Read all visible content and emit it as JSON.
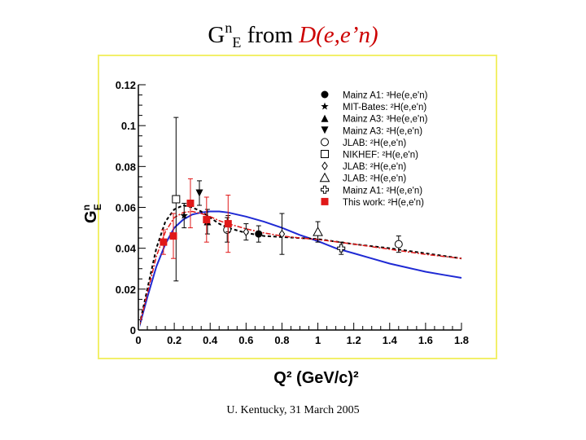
{
  "title": {
    "symbol": "G",
    "sup": "n",
    "sub": "E",
    "middle": " from ",
    "reaction": "D(e,e’n)"
  },
  "footer": "U. Kentucky, 31 March 2005",
  "colors": {
    "frame": "#f2f06a",
    "blue": "#1f2ad4",
    "red": "#e01818",
    "black": "#000000"
  },
  "chart_data": {
    "type": "scatter",
    "title": "",
    "xlabel": "Q² (GeV/c)²",
    "ylabel": "G_E^n",
    "xlim": [
      0,
      1.8
    ],
    "ylim": [
      0,
      0.12
    ],
    "xticks": [
      "0",
      "0.2",
      "0.4",
      "0.6",
      "0.8",
      "1",
      "1.2",
      "1.4",
      "1.6",
      "1.8"
    ],
    "yticks": [
      "0",
      "0.02",
      "0.04",
      "0.06",
      "0.08",
      "0.1",
      "0.12"
    ],
    "legend_position": "top-right",
    "legend": [
      {
        "marker": "filled-circle",
        "label": "Mainz A1: ³He(e,e'n)"
      },
      {
        "marker": "filled-star",
        "label": "MIT-Bates: ²H(e,e'n)"
      },
      {
        "marker": "filled-triangle-up",
        "label": "Mainz A3: ³He(e,e'n)"
      },
      {
        "marker": "filled-triangle-down",
        "label": "Mainz A3: ²H(e,e'n)"
      },
      {
        "marker": "open-circle",
        "label": "JLAB: ²H(e,e'n)"
      },
      {
        "marker": "open-square",
        "label": "NIKHEF: ²H(e,e'n)"
      },
      {
        "marker": "open-diamond",
        "label": "JLAB: ²H(e,e'n)"
      },
      {
        "marker": "open-triangle-up",
        "label": "JLAB: ²H(e,e'n)"
      },
      {
        "marker": "open-cross",
        "label": "Mainz A1: ²H(e,e'n)"
      },
      {
        "marker": "red-square",
        "label": "This work: ²H(e,e'n)"
      }
    ],
    "series": [
      {
        "name": "Mainz A1 ³He",
        "marker": "filled-circle",
        "points": [
          {
            "x": 0.67,
            "y": 0.047,
            "err": 0.004
          }
        ]
      },
      {
        "name": "MIT-Bates",
        "marker": "filled-star",
        "points": [
          {
            "x": 0.255,
            "y": 0.056,
            "err": 0.006
          }
        ]
      },
      {
        "name": "Mainz A3 ³He",
        "marker": "filled-triangle-up",
        "points": [
          {
            "x": 0.385,
            "y": 0.053,
            "err": 0.006
          }
        ]
      },
      {
        "name": "Mainz A3 ²H",
        "marker": "filled-triangle-down",
        "points": [
          {
            "x": 0.34,
            "y": 0.067,
            "err": 0.006
          }
        ]
      },
      {
        "name": "JLAB open circle",
        "marker": "open-circle",
        "points": [
          {
            "x": 0.495,
            "y": 0.049,
            "err": 0.006
          },
          {
            "x": 1.45,
            "y": 0.042,
            "err": 0.004
          }
        ]
      },
      {
        "name": "NIKHEF",
        "marker": "open-square",
        "points": [
          {
            "x": 0.21,
            "y": 0.064,
            "err": 0.04
          }
        ]
      },
      {
        "name": "JLAB diamond",
        "marker": "open-diamond",
        "points": [
          {
            "x": 0.5,
            "y": 0.052,
            "err": 0.004
          },
          {
            "x": 0.6,
            "y": 0.048,
            "err": 0.004
          },
          {
            "x": 0.8,
            "y": 0.047,
            "err": 0.01
          }
        ]
      },
      {
        "name": "JLAB open triangle",
        "marker": "open-triangle-up",
        "points": [
          {
            "x": 1.0,
            "y": 0.048,
            "err": 0.005
          }
        ]
      },
      {
        "name": "Mainz A1 ²H",
        "marker": "open-cross",
        "points": [
          {
            "x": 1.13,
            "y": 0.04,
            "err": 0.003
          }
        ]
      },
      {
        "name": "This work",
        "marker": "red-square",
        "points": [
          {
            "x": 0.14,
            "y": 0.043,
            "err": 0.006
          },
          {
            "x": 0.195,
            "y": 0.046,
            "err": 0.011
          },
          {
            "x": 0.29,
            "y": 0.062,
            "err": 0.012
          },
          {
            "x": 0.38,
            "y": 0.054,
            "err": 0.011
          },
          {
            "x": 0.5,
            "y": 0.052,
            "err": 0.014
          }
        ]
      }
    ],
    "curves": [
      {
        "name": "fit blue solid",
        "style": "solid-blue",
        "x": [
          0,
          0.05,
          0.1,
          0.15,
          0.2,
          0.25,
          0.3,
          0.35,
          0.4,
          0.45,
          0.5,
          0.6,
          0.7,
          0.8,
          0.9,
          1.0,
          1.1,
          1.2,
          1.3,
          1.4,
          1.5,
          1.6,
          1.7,
          1.8
        ],
        "y": [
          0,
          0.016,
          0.031,
          0.042,
          0.05,
          0.054,
          0.0565,
          0.0575,
          0.058,
          0.058,
          0.0575,
          0.0555,
          0.053,
          0.05,
          0.0465,
          0.0435,
          0.04,
          0.0375,
          0.035,
          0.0325,
          0.0305,
          0.0285,
          0.027,
          0.0255
        ]
      },
      {
        "name": "fit black dashed",
        "style": "dashed-black",
        "x": [
          0,
          0.05,
          0.1,
          0.15,
          0.2,
          0.25,
          0.3,
          0.35,
          0.4,
          0.45,
          0.5,
          0.6,
          0.7,
          0.8,
          0.9,
          1.0,
          1.2,
          1.4,
          1.6,
          1.8
        ],
        "y": [
          0,
          0.02,
          0.04,
          0.053,
          0.059,
          0.061,
          0.06,
          0.058,
          0.055,
          0.052,
          0.05,
          0.0475,
          0.046,
          0.0455,
          0.045,
          0.0445,
          0.042,
          0.04,
          0.0375,
          0.035
        ]
      },
      {
        "name": "fit red dash-dot",
        "style": "dashdot-red",
        "x": [
          0,
          0.05,
          0.1,
          0.15,
          0.2,
          0.25,
          0.3,
          0.35,
          0.4,
          0.45,
          0.5,
          0.6,
          0.7,
          0.8,
          0.9,
          1.0,
          1.2,
          1.4,
          1.6,
          1.8
        ],
        "y": [
          0,
          0.018,
          0.036,
          0.048,
          0.055,
          0.0575,
          0.058,
          0.057,
          0.0555,
          0.0535,
          0.052,
          0.0495,
          0.0475,
          0.046,
          0.045,
          0.0443,
          0.042,
          0.0395,
          0.037,
          0.035
        ]
      }
    ]
  }
}
